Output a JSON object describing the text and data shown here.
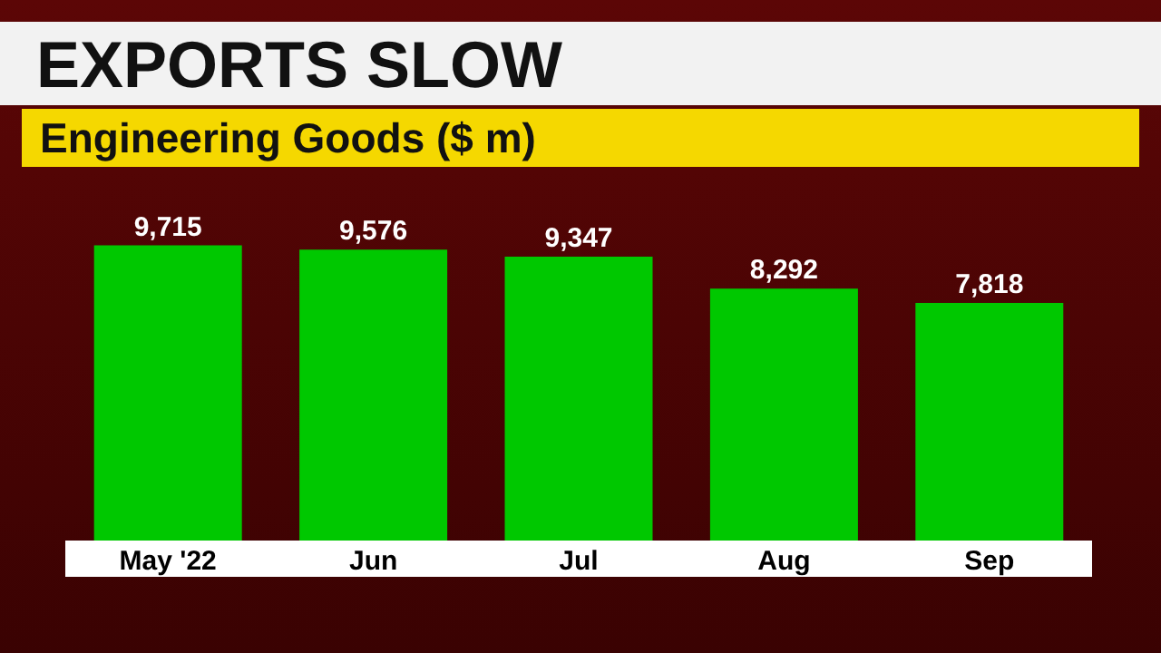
{
  "chart_data": {
    "type": "bar",
    "title": "EXPORTS SLOW",
    "subtitle": "Engineering Goods ($ m)",
    "categories": [
      "May '22",
      "Jun",
      "Jul",
      "Aug",
      "Sep"
    ],
    "values": [
      9715,
      9576,
      9347,
      8292,
      7818
    ],
    "color": "#00c800",
    "value_labels": [
      "9,715",
      "9,576",
      "9,347",
      "8,292",
      "7,818"
    ],
    "grid": false,
    "legend": false
  }
}
